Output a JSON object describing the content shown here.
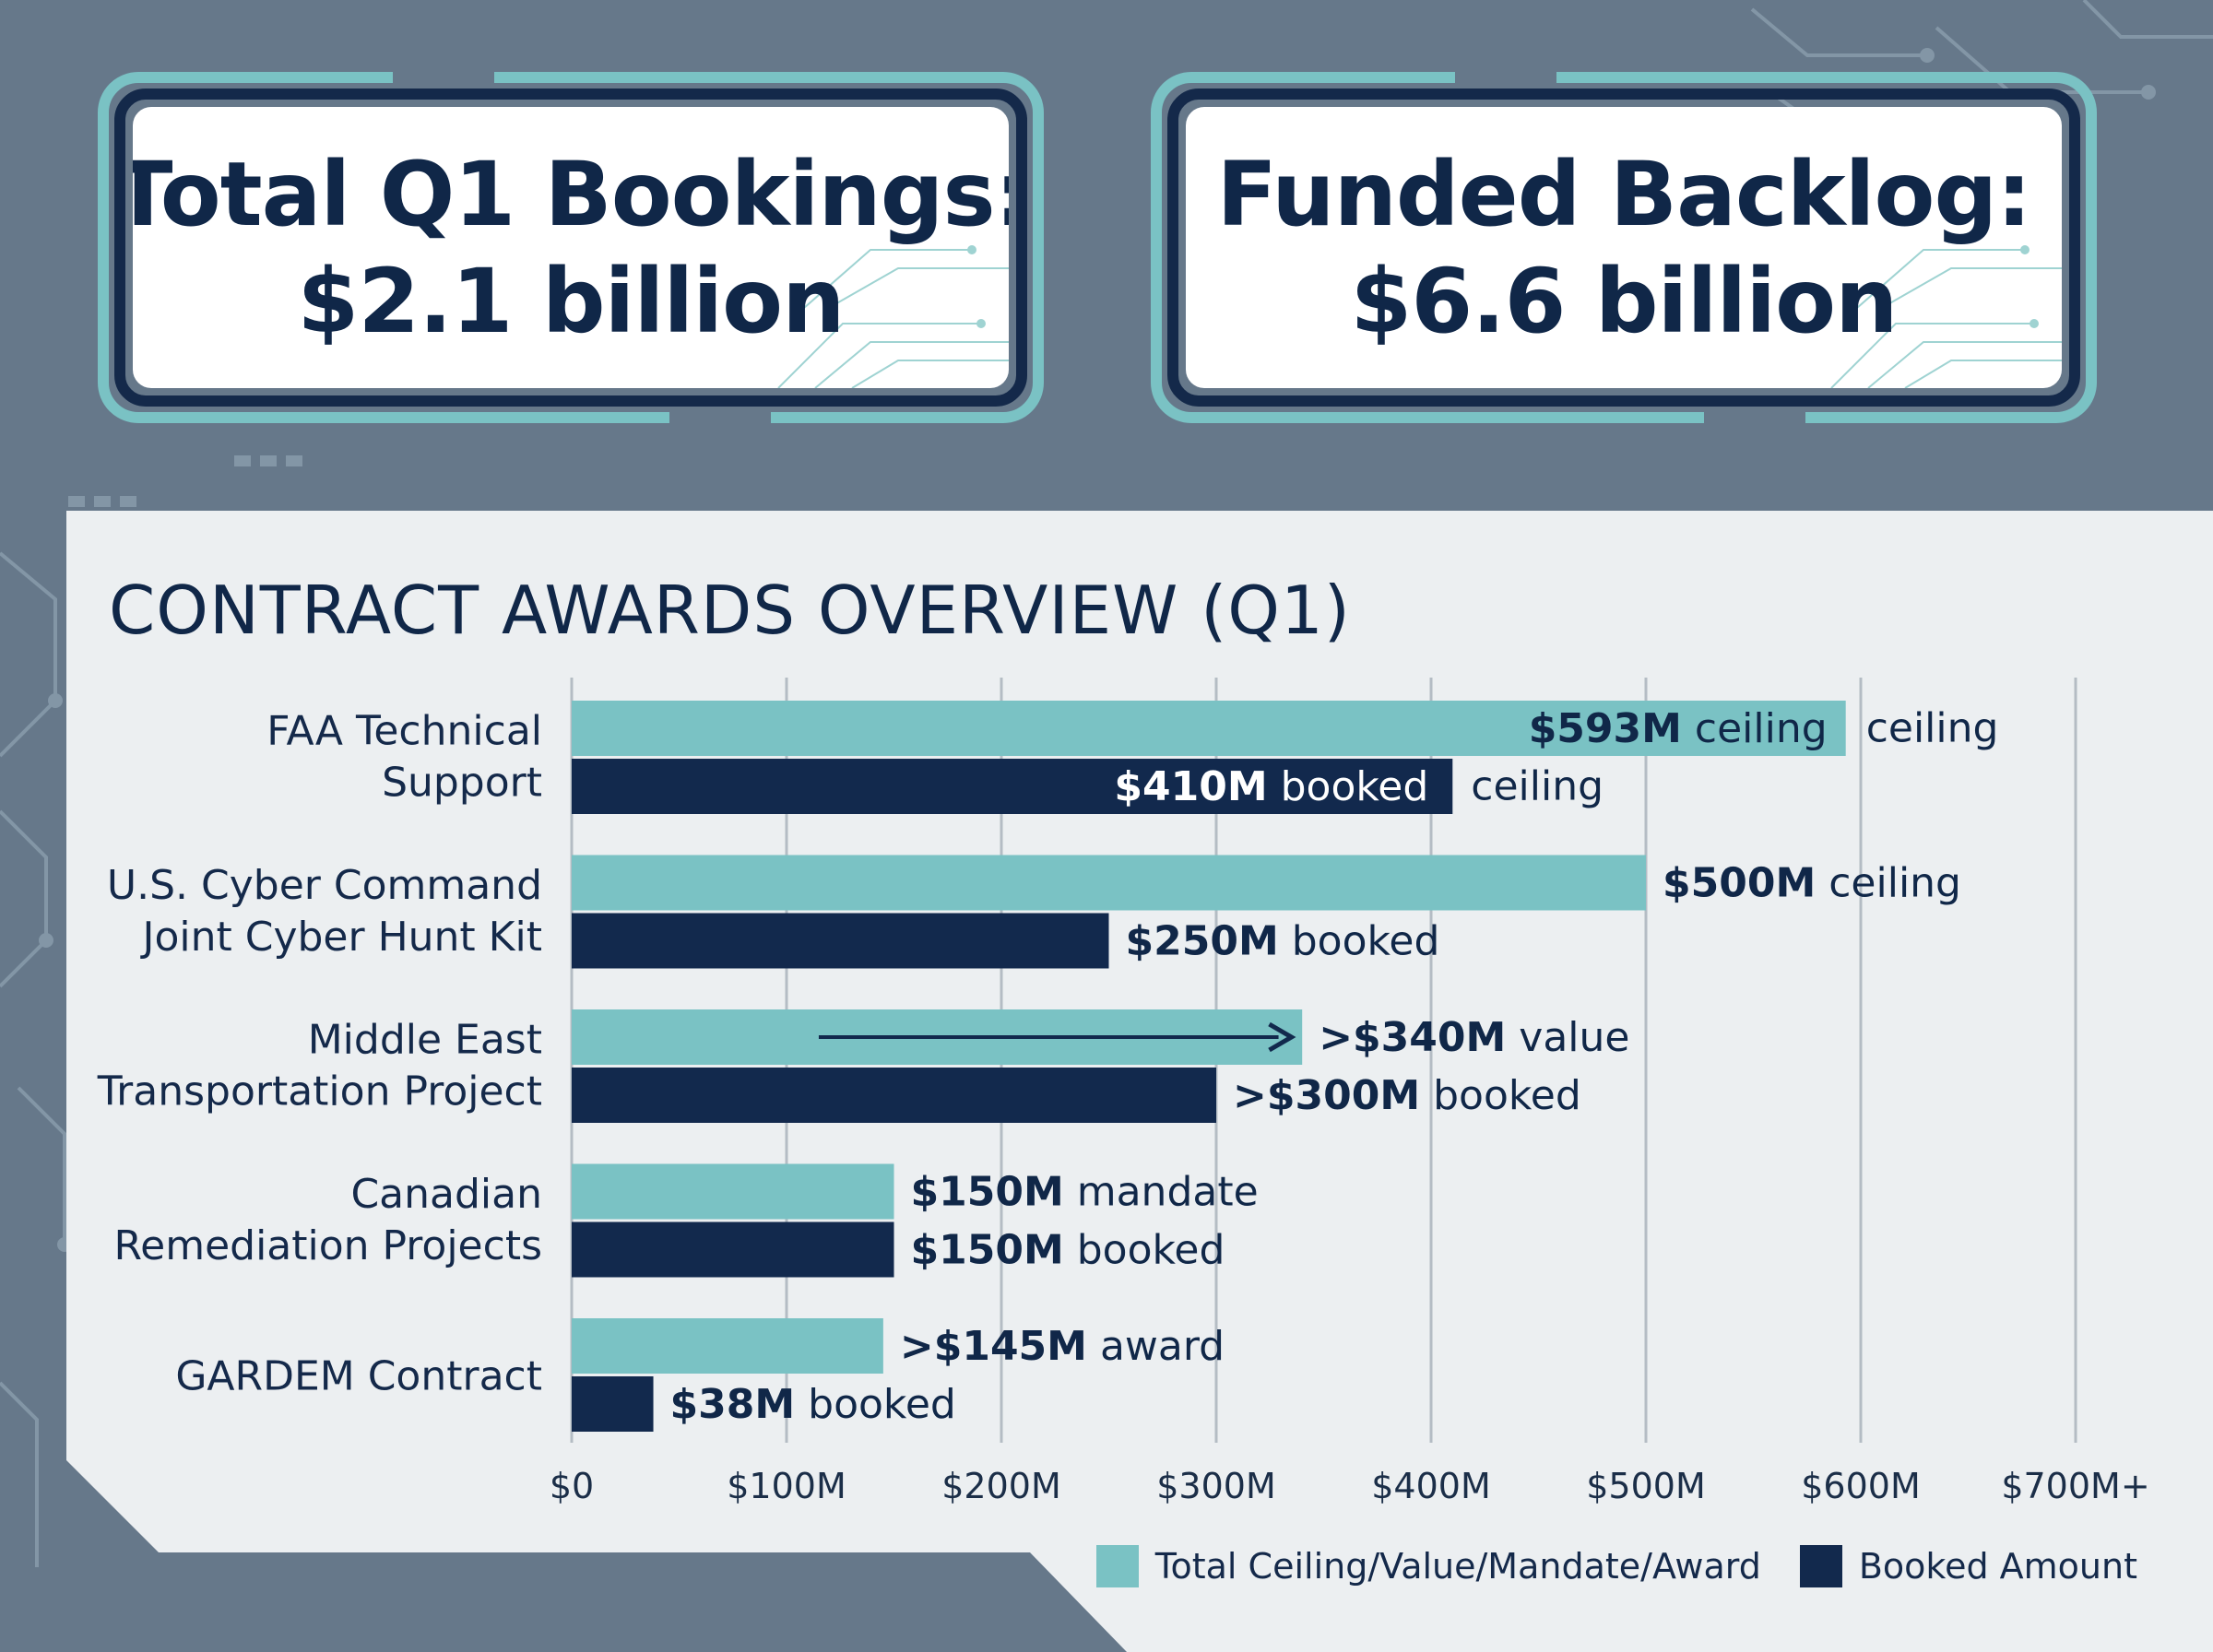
{
  "header": {
    "bookings": {
      "line1": "Total Q1 Bookings:",
      "line2": "$2.1 billion"
    },
    "backlog": {
      "line1": "Funded Backlog:",
      "line2": "$6.6 billion"
    }
  },
  "colors": {
    "ceiling": "#7ac2c4",
    "booked": "#12294d",
    "text": "#102748"
  },
  "chart_data": {
    "type": "bar",
    "orientation": "horizontal",
    "title": "CONTRACT AWARDS OVERVIEW (Q1)",
    "categories": [
      [
        "FAA Technical",
        "Support"
      ],
      [
        "U.S. Cyber Command",
        "Joint Cyber Hunt Kit"
      ],
      [
        "Middle East",
        "Transportation Project"
      ],
      [
        "Canadian",
        "Remediation Projects"
      ],
      [
        "GARDEM Contract"
      ]
    ],
    "series": [
      {
        "name": "Total Ceiling/Value/Mandate/Award",
        "values": [
          593,
          500,
          340,
          150,
          145
        ],
        "labels": [
          {
            "amount": "$593M",
            "suffix": "ceiling",
            "extra": "ceiling"
          },
          {
            "amount": "$500M",
            "suffix": "ceiling"
          },
          {
            "amount": ">$340M",
            "suffix": "value"
          },
          {
            "amount": "$150M",
            "suffix": "mandate"
          },
          {
            "amount": ">$145M",
            "suffix": "award"
          }
        ]
      },
      {
        "name": "Booked Amount",
        "values": [
          410,
          250,
          300,
          150,
          38
        ],
        "labels": [
          {
            "amount": "$410M",
            "suffix": "booked",
            "extra": "ceiling"
          },
          {
            "amount": "$250M",
            "suffix": "booked"
          },
          {
            "amount": ">$300M",
            "suffix": "booked"
          },
          {
            "amount": "$150M",
            "suffix": "booked"
          },
          {
            "amount": "$38M",
            "suffix": "booked"
          }
        ]
      }
    ],
    "xlim": [
      0,
      700
    ],
    "xticks": [
      0,
      100,
      200,
      300,
      400,
      500,
      600,
      700
    ],
    "xtick_labels": [
      "$0",
      "$100M",
      "$200M",
      "$300M",
      "$400M",
      "$500M",
      "$600M",
      "$700M+"
    ],
    "grid": true,
    "legend_position": "bottom-right",
    "annotations": [
      {
        "type": "arrow",
        "series": 0,
        "category": 2,
        "from": 115,
        "to": 335
      }
    ]
  }
}
